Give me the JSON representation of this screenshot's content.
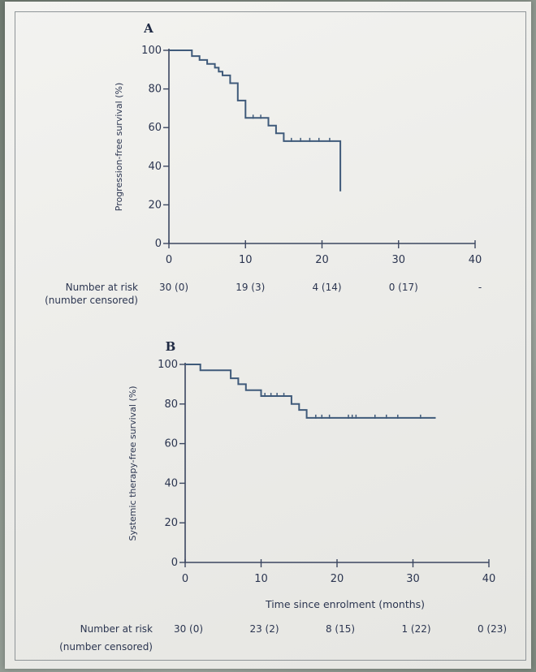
{
  "chart_data": [
    {
      "type": "line",
      "panel": "A",
      "ylabel": "Progression-free survival (%)",
      "xlabel": "",
      "xlim": [
        0,
        40
      ],
      "ylim": [
        0,
        100
      ],
      "x_ticks": [
        "0",
        "10",
        "20",
        "30",
        "40"
      ],
      "y_ticks": [
        "0",
        "20",
        "40",
        "60",
        "80",
        "100"
      ],
      "grid": false,
      "series": [
        {
          "color": "#3f5a7a",
          "x": [
            0,
            2,
            3,
            4,
            5,
            6,
            6.5,
            7,
            8,
            9,
            10,
            12,
            13,
            14,
            15,
            16,
            17,
            19,
            21,
            22.4,
            22.4
          ],
          "y": [
            100,
            100,
            97,
            95,
            93,
            91,
            89,
            87,
            83,
            74,
            65,
            65,
            61,
            57,
            53,
            53,
            53,
            53,
            53,
            52,
            27
          ],
          "censored_x": [
            11,
            12,
            16,
            17.2,
            18.4,
            19.6,
            21
          ]
        }
      ],
      "risk_table": {
        "label_line1": "Number at risk",
        "label_line2": "(number censored)",
        "x": [
          0,
          10,
          20,
          30,
          40
        ],
        "values": [
          "30 (0)",
          "19 (3)",
          "4 (14)",
          "0 (17)",
          "-"
        ]
      }
    },
    {
      "type": "line",
      "panel": "B",
      "ylabel": "Systemic therapy-free survival (%)",
      "xlabel": "Time since enrolment (months)",
      "xlim": [
        0,
        40
      ],
      "ylim": [
        0,
        100
      ],
      "x_ticks": [
        "0",
        "10",
        "20",
        "30",
        "40"
      ],
      "y_ticks": [
        "0",
        "20",
        "40",
        "60",
        "80",
        "100"
      ],
      "grid": false,
      "series": [
        {
          "color": "#3f5a7a",
          "x": [
            0,
            2,
            5,
            6,
            7,
            8,
            10,
            13,
            14,
            15,
            16,
            17,
            20,
            24,
            28,
            33
          ],
          "y": [
            100,
            97,
            97,
            93,
            90,
            87,
            84,
            84,
            80,
            77,
            73,
            73,
            73,
            73,
            73,
            73
          ],
          "censored_x": [
            10.5,
            11.3,
            12.1,
            13,
            17.2,
            18,
            19,
            21.5,
            22,
            22.5,
            25,
            26.5,
            28,
            31
          ]
        }
      ],
      "risk_table": {
        "label_line1": "Number at risk",
        "label_line2": "(number censored)",
        "x": [
          0,
          10,
          20,
          30,
          40
        ],
        "values": [
          "30 (0)",
          "23 (2)",
          "8 (15)",
          "1 (22)",
          "0 (23)"
        ]
      }
    }
  ]
}
